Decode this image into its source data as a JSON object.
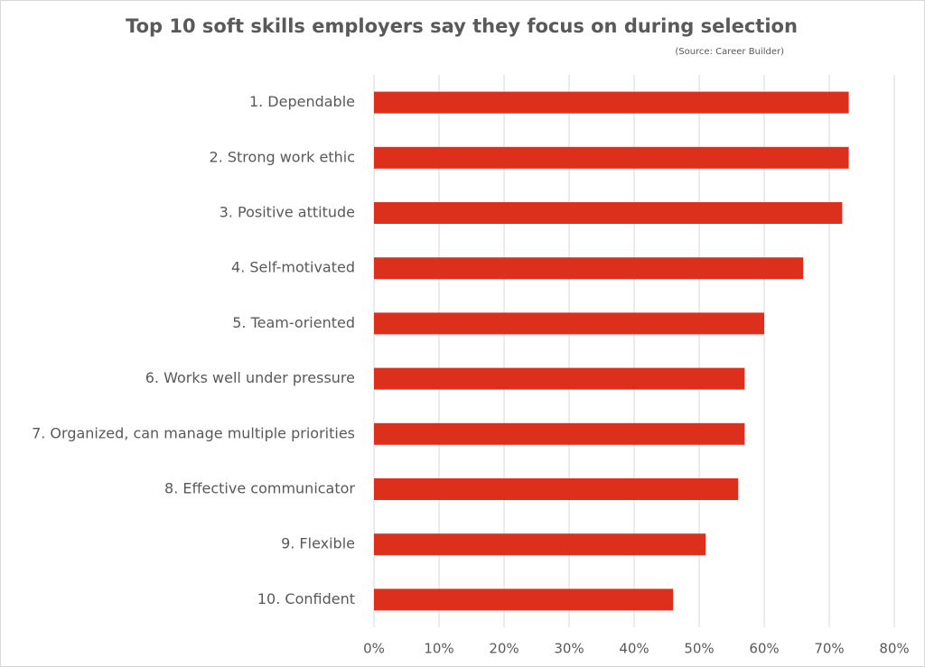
{
  "chart_data": {
    "type": "hbar",
    "title": "Top 10 soft skills employers say they focus on during selection",
    "subtitle": "(Source: Career Builder)",
    "categories": [
      "1. Dependable",
      "2. Strong work ethic",
      "3. Positive attitude",
      "4. Self-motivated",
      "5. Team-oriented",
      "6. Works well under pressure",
      "7. Organized, can manage multiple priorities",
      "8. Effective communicator",
      "9. Flexible",
      "10. Confident"
    ],
    "values": [
      73,
      73,
      72,
      66,
      60,
      57,
      57,
      56,
      51,
      46
    ],
    "color": "#dc2f1c",
    "xlim": [
      0,
      80
    ],
    "xticks": [
      {
        "value": 0,
        "label": "0%"
      },
      {
        "value": 10,
        "label": "10%"
      },
      {
        "value": 20,
        "label": "20%"
      },
      {
        "value": 30,
        "label": "30%"
      },
      {
        "value": 40,
        "label": "40%"
      },
      {
        "value": 50,
        "label": "50%"
      },
      {
        "value": 60,
        "label": "60%"
      },
      {
        "value": 70,
        "label": "70%"
      },
      {
        "value": 80,
        "label": "80%"
      }
    ],
    "grid": true
  }
}
